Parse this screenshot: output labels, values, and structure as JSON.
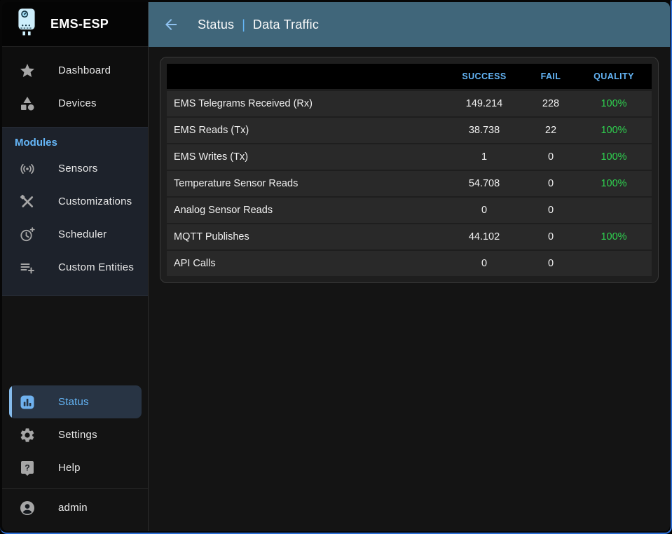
{
  "app": {
    "title": "EMS-ESP",
    "logo_icon": "boiler-icon"
  },
  "appbar": {
    "back_icon": "arrow-back-icon",
    "section": "Status",
    "separator": "|",
    "page": "Data Traffic"
  },
  "sidebar": {
    "top_items": [
      {
        "label": "Dashboard",
        "icon": "star-icon"
      },
      {
        "label": "Devices",
        "icon": "category-shapes-icon"
      }
    ],
    "modules": {
      "label": "Modules",
      "items": [
        {
          "label": "Sensors",
          "icon": "sensors-icon"
        },
        {
          "label": "Customizations",
          "icon": "tools-icon"
        },
        {
          "label": "Scheduler",
          "icon": "clock-plus-icon"
        },
        {
          "label": "Custom Entities",
          "icon": "list-add-icon"
        }
      ]
    },
    "bottom_items": [
      {
        "label": "Status",
        "icon": "bar-chart-icon",
        "selected": true
      },
      {
        "label": "Settings",
        "icon": "gear-icon",
        "selected": false
      },
      {
        "label": "Help",
        "icon": "help-icon",
        "selected": false
      }
    ],
    "user": {
      "label": "admin",
      "icon": "account-icon"
    }
  },
  "table": {
    "columns": [
      "",
      "SUCCESS",
      "FAIL",
      "QUALITY"
    ],
    "rows": [
      {
        "label": "EMS Telegrams Received (Rx)",
        "success": "149.214",
        "fail": "228",
        "quality": "100%"
      },
      {
        "label": "EMS Reads (Tx)",
        "success": "38.738",
        "fail": "22",
        "quality": "100%"
      },
      {
        "label": "EMS Writes (Tx)",
        "success": "1",
        "fail": "0",
        "quality": "100%"
      },
      {
        "label": "Temperature Sensor Reads",
        "success": "54.708",
        "fail": "0",
        "quality": ""
      },
      {
        "label": "Analog Sensor Reads",
        "success": "0",
        "fail": "0",
        "quality": ""
      },
      {
        "label": "MQTT Publishes",
        "success": "44.102",
        "fail": "0",
        "quality": "100%"
      },
      {
        "label": "API Calls",
        "success": "0",
        "fail": "0",
        "quality": ""
      }
    ]
  },
  "colors": {
    "accent": "#64b5f6",
    "accent_light": "#85bbec",
    "appbar_bg": "#40667a",
    "success_green": "#2fd24f",
    "selected_bg": "#283444",
    "window_focus_border": "#2d6fd6"
  }
}
